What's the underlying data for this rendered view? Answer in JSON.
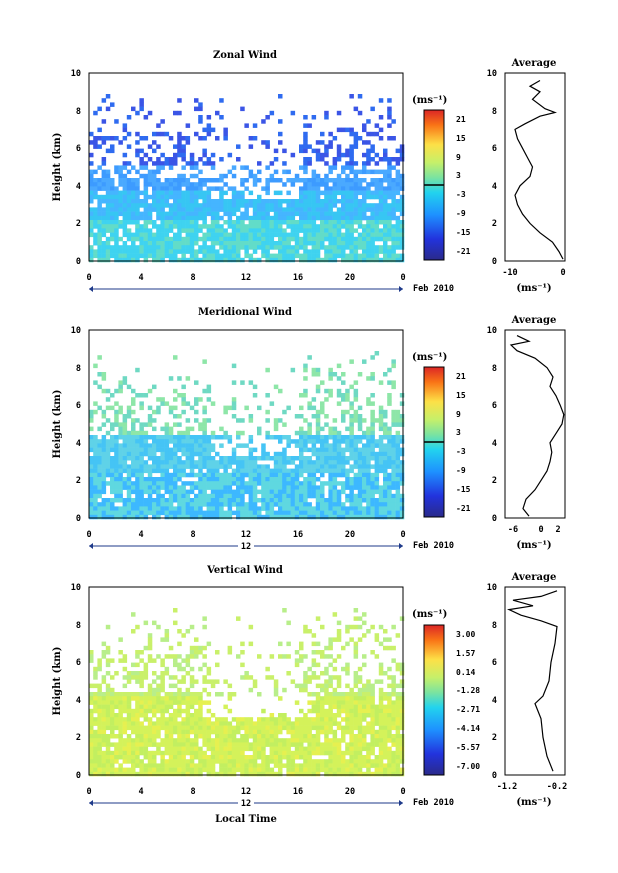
{
  "chart_data": [
    {
      "type": "heatmap",
      "title": "Zonal Wind",
      "xlabel": "",
      "ylabel": "Height (km)",
      "x_ticks": [
        "0",
        "4",
        "8",
        "12",
        "16",
        "20",
        "0"
      ],
      "y_ticks": [
        "0",
        "2",
        "4",
        "6",
        "8",
        "10"
      ],
      "xlim": [
        0,
        24
      ],
      "ylim": [
        0,
        10
      ],
      "date_label": "12",
      "month_label": "Feb 2010",
      "colorbar": {
        "unit_label": "(ms⁻¹)",
        "ticks": [
          "21",
          "15",
          "9",
          "3",
          "-3",
          "-9",
          "-15",
          "-21"
        ],
        "range": [
          -24,
          24
        ],
        "marker": 0
      },
      "profile": {
        "title": "Average",
        "xlabel": "(ms⁻¹)",
        "x_ticks": [
          "-10",
          "0"
        ],
        "xlim": [
          -12,
          0
        ],
        "points": [
          [
            -0.4,
            0.1
          ],
          [
            -1.2,
            0.5
          ],
          [
            -2.5,
            1
          ],
          [
            -5,
            1.5
          ],
          [
            -7,
            2
          ],
          [
            -8.5,
            2.5
          ],
          [
            -9.5,
            3
          ],
          [
            -10,
            3.5
          ],
          [
            -9,
            4
          ],
          [
            -7,
            4.5
          ],
          [
            -6.5,
            5
          ],
          [
            -7.5,
            5.5
          ],
          [
            -8.5,
            6
          ],
          [
            -9.5,
            6.5
          ],
          [
            -10,
            7
          ],
          [
            -8,
            7.3
          ],
          [
            -5,
            7.7
          ],
          [
            -2,
            7.9
          ],
          [
            -4,
            8.1
          ],
          [
            -6.5,
            8.6
          ],
          [
            -5,
            9
          ],
          [
            -7,
            9.3
          ],
          [
            -5,
            9.6
          ]
        ]
      }
    },
    {
      "type": "heatmap",
      "title": "Meridional Wind",
      "xlabel": "",
      "ylabel": "Height (km)",
      "x_ticks": [
        "0",
        "4",
        "8",
        "12",
        "16",
        "20",
        "0"
      ],
      "y_ticks": [
        "0",
        "2",
        "4",
        "6",
        "8",
        "10"
      ],
      "xlim": [
        0,
        24
      ],
      "ylim": [
        0,
        10
      ],
      "date_label": "12",
      "month_label": "Feb 2010",
      "colorbar": {
        "unit_label": "(ms⁻¹)",
        "ticks": [
          "21",
          "15",
          "9",
          "3",
          "-3",
          "-9",
          "-15",
          "-21"
        ],
        "range": [
          -24,
          24
        ],
        "marker": 0
      },
      "profile": {
        "title": "Average",
        "xlabel": "(ms⁻¹)",
        "x_ticks": [
          "-6",
          "0",
          "2"
        ],
        "xlim": [
          -7,
          3
        ],
        "points": [
          [
            -3,
            0.1
          ],
          [
            -4,
            0.5
          ],
          [
            -3.5,
            1
          ],
          [
            -2,
            1.5
          ],
          [
            -1,
            2
          ],
          [
            0,
            2.5
          ],
          [
            0.5,
            3
          ],
          [
            0.8,
            3.5
          ],
          [
            0.5,
            4
          ],
          [
            1.5,
            4.5
          ],
          [
            2.5,
            5
          ],
          [
            2.8,
            5.5
          ],
          [
            2.2,
            6
          ],
          [
            1.5,
            6.5
          ],
          [
            0.5,
            7
          ],
          [
            1,
            7.5
          ],
          [
            0,
            8
          ],
          [
            -2,
            8.5
          ],
          [
            -5,
            8.9
          ],
          [
            -6,
            9.2
          ],
          [
            -3,
            9.4
          ],
          [
            -5,
            9.7
          ]
        ]
      }
    },
    {
      "type": "heatmap",
      "title": "Vertical Wind",
      "xlabel": "Local Time",
      "ylabel": "Height (km)",
      "x_ticks": [
        "0",
        "4",
        "8",
        "12",
        "16",
        "20",
        "0"
      ],
      "y_ticks": [
        "0",
        "2",
        "4",
        "6",
        "8",
        "10"
      ],
      "xlim": [
        0,
        24
      ],
      "ylim": [
        0,
        10
      ],
      "date_label": "12",
      "month_label": "Feb 2010",
      "colorbar": {
        "unit_label": "(ms⁻¹)",
        "ticks": [
          "3.00",
          "1.57",
          "0.14",
          "-1.28",
          "-2.71",
          "-4.14",
          "-5.57",
          "-7.00"
        ],
        "range": [
          -7.7,
          3.7
        ],
        "marker": null
      },
      "profile": {
        "title": "Average",
        "xlabel": "(ms⁻¹)",
        "x_ticks": [
          "-1.2",
          "-0.2"
        ],
        "xlim": [
          -1.5,
          0
        ],
        "points": [
          [
            -0.3,
            0.2
          ],
          [
            -0.45,
            1
          ],
          [
            -0.55,
            2
          ],
          [
            -0.6,
            3
          ],
          [
            -0.75,
            3.8
          ],
          [
            -0.55,
            4.2
          ],
          [
            -0.4,
            5
          ],
          [
            -0.35,
            6
          ],
          [
            -0.25,
            7
          ],
          [
            -0.2,
            7.9
          ],
          [
            -0.6,
            8.2
          ],
          [
            -1.1,
            8.5
          ],
          [
            -1.4,
            8.8
          ],
          [
            -0.8,
            9.0
          ],
          [
            -1.3,
            9.3
          ],
          [
            -0.6,
            9.5
          ],
          [
            -0.2,
            9.8
          ]
        ]
      }
    }
  ]
}
